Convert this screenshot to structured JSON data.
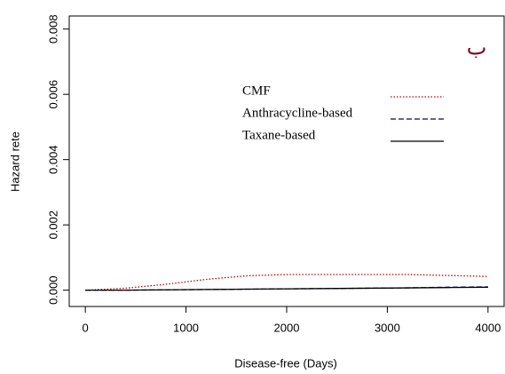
{
  "chart_data": {
    "type": "line",
    "annotation": "ب",
    "x_label": "Disease-free (Days)",
    "y_label": "Hazard rete",
    "x": [
      0,
      400,
      800,
      1200,
      1600,
      2000,
      2400,
      2800,
      3200,
      3600,
      4000
    ],
    "series": [
      {
        "name": "CMF",
        "color": "#c00000",
        "linestyle": "dotted",
        "values": [
          0,
          6e-05,
          0.00018,
          0.00033,
          0.00044,
          0.00048,
          0.00048,
          0.00048,
          0.00048,
          0.00045,
          0.00042
        ]
      },
      {
        "name": "Anthracycline-based",
        "color": "#00008b",
        "linestyle": "dashed",
        "values": [
          0,
          0,
          1e-05,
          2e-05,
          3e-05,
          4e-05,
          5e-05,
          6e-05,
          7e-05,
          9e-05,
          0.0001
        ]
      },
      {
        "name": "Taxane-based",
        "color": "#000000",
        "linestyle": "solid",
        "values": [
          0,
          0,
          1e-05,
          2e-05,
          3e-05,
          4e-05,
          5e-05,
          6e-05,
          7e-05,
          8e-05,
          9e-05
        ]
      }
    ],
    "xlim": [
      -160,
      4160
    ],
    "ylim": [
      -0.0005,
      0.0084
    ],
    "xticks": [
      0,
      1000,
      2000,
      3000,
      4000
    ],
    "yticks": [
      {
        "value": 0,
        "label": "0.000"
      },
      0.002,
      0.004,
      0.006,
      0.008
    ]
  }
}
